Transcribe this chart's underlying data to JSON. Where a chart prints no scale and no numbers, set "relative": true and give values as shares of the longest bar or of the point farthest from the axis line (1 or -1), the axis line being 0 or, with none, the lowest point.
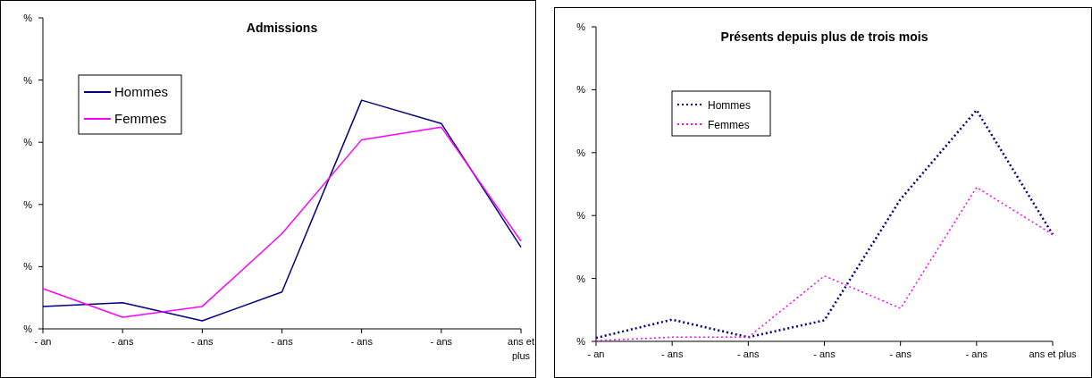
{
  "chart_data": [
    {
      "type": "line",
      "title": "Admissions",
      "ylabel": "%",
      "relative": true,
      "legend": "top left",
      "line_style": "solid",
      "categories": [
        "- an",
        "- ans",
        "- ans",
        "- ans",
        "- ans",
        "- ans",
        "ans et plus"
      ],
      "series": [
        {
          "name": "Hommes",
          "color": "#000080",
          "values": [
            0.098,
            0.114,
            0.035,
            0.161,
            1,
            0.898,
            0.357
          ]
        },
        {
          "name": "Femmes",
          "color": "#ff00ff",
          "values": [
            0.176,
            0.051,
            0.098,
            0.416,
            0.827,
            0.882,
            0.384
          ]
        }
      ]
    },
    {
      "type": "line",
      "title": "Présents depuis plus de trois mois",
      "ylabel": "%",
      "relative": true,
      "legend": "top left",
      "line_style": "dotted",
      "categories": [
        "- an",
        "- ans",
        "- ans",
        "- ans",
        "- ans",
        "- ans",
        "ans et plus"
      ],
      "series": [
        {
          "name": "Hommes",
          "color": "#000080",
          "values": [
            0.015,
            0.094,
            0.018,
            0.091,
            0.614,
            1,
            0.462
          ]
        },
        {
          "name": "Femmes",
          "color": "#ff00ff",
          "values": [
            0.003,
            0.018,
            0.018,
            0.283,
            0.143,
            0.666,
            0.462
          ]
        }
      ]
    }
  ]
}
